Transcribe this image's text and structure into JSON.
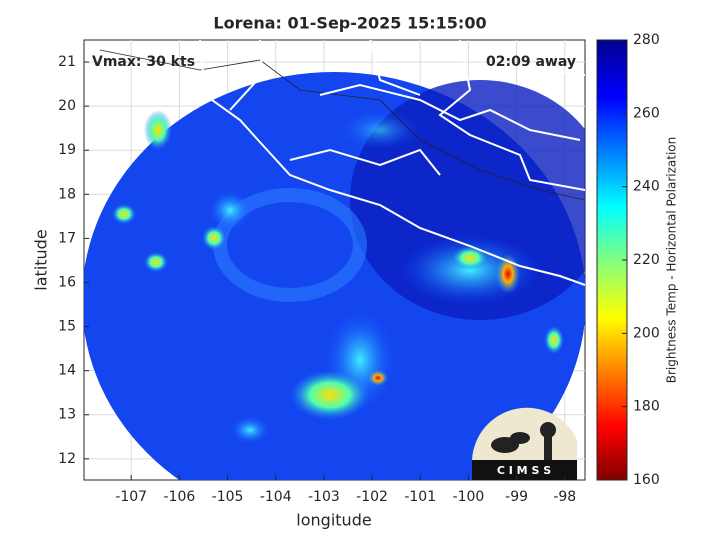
{
  "chart_data": {
    "type": "image",
    "title": "Lorena: 01-Sep-2025 15:15:00",
    "xlabel": "longitude",
    "ylabel": "latitude",
    "xlim": [
      -107.98,
      -97.58
    ],
    "ylim": [
      11.52,
      21.5
    ],
    "xticks": [
      -107,
      -106,
      -105,
      -104,
      -103,
      -102,
      -101,
      -100,
      -99,
      -98
    ],
    "yticks": [
      12,
      13,
      14,
      15,
      16,
      17,
      18,
      19,
      20,
      21
    ],
    "grid": true,
    "annotations": [
      "Vmax: 30 kts",
      "02:09 away"
    ],
    "colorbar": {
      "label": "Brightness Temp - Horizontal Polarization",
      "lim": [
        160,
        280
      ],
      "ticks": [
        160,
        180,
        200,
        220,
        240,
        260,
        280
      ]
    },
    "logo": "C I M S S"
  }
}
